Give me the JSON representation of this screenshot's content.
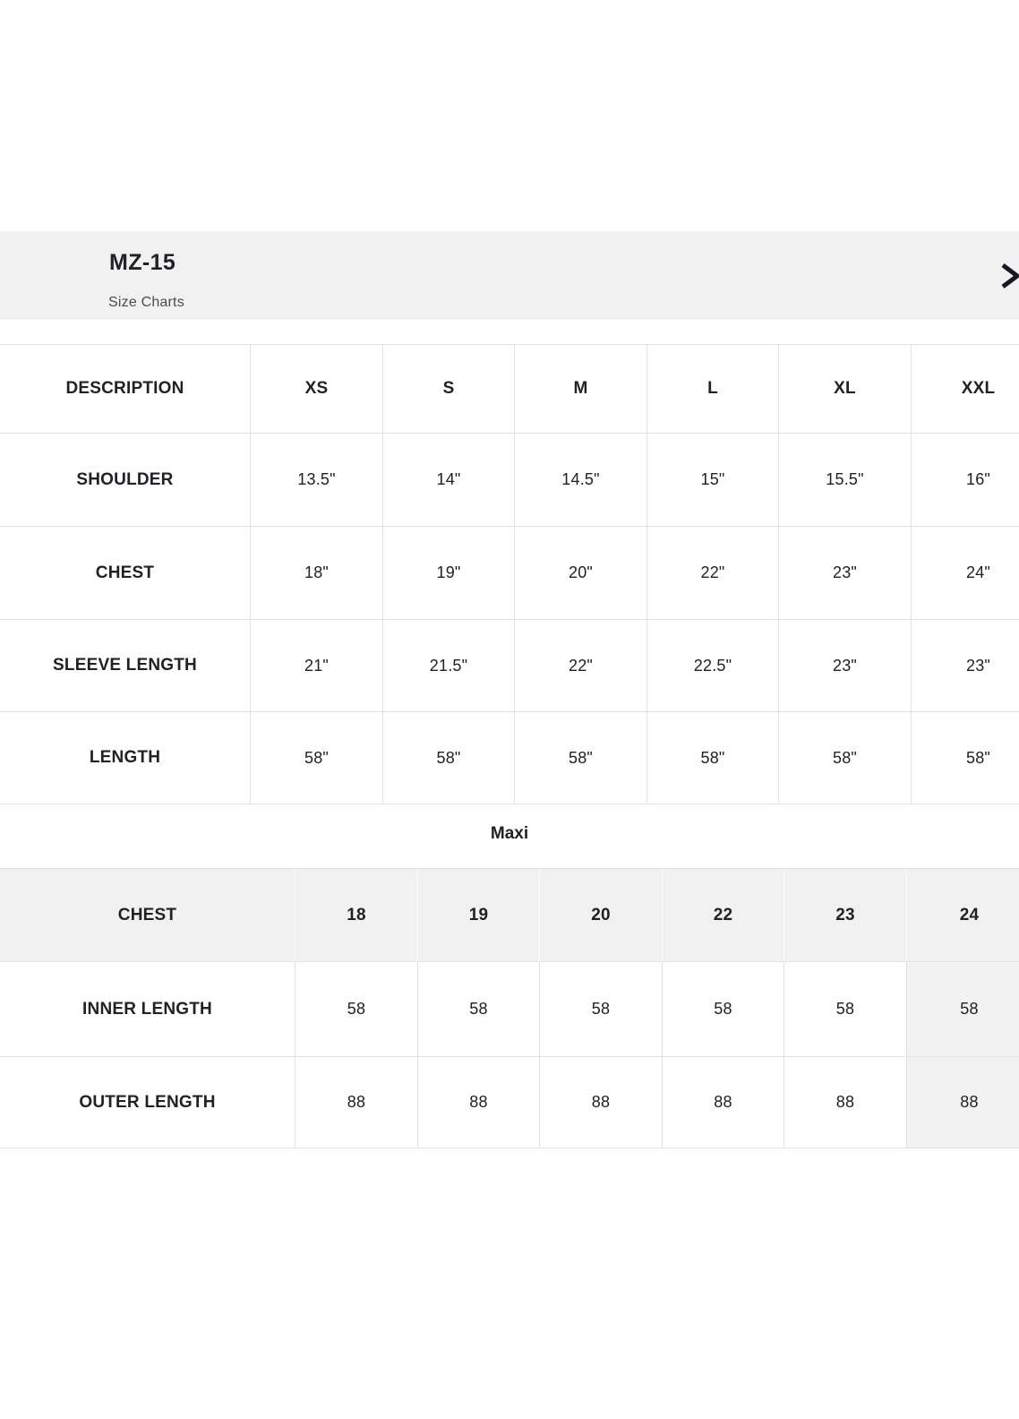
{
  "header": {
    "title": "MZ-15",
    "subtitle": "Size Charts",
    "chevron_icon": "chevron-right"
  },
  "size_table": {
    "columns": [
      "DESCRIPTION",
      "XS",
      "S",
      "M",
      "L",
      "XL",
      "XXL"
    ],
    "rows": [
      {
        "label": "SHOULDER",
        "values": [
          "13.5\"",
          "14\"",
          "14.5\"",
          "15\"",
          "15.5\"",
          "16\""
        ]
      },
      {
        "label": "CHEST",
        "values": [
          "18\"",
          "19\"",
          "20\"",
          "22\"",
          "23\"",
          "24\""
        ]
      },
      {
        "label": "SLEEVE LENGTH",
        "values": [
          "21\"",
          "21.5\"",
          "22\"",
          "22.5\"",
          "23\"",
          "23\""
        ]
      },
      {
        "label": "LENGTH",
        "values": [
          "58\"",
          "58\"",
          "58\"",
          "58\"",
          "58\"",
          "58\""
        ]
      }
    ]
  },
  "maxi": {
    "heading": "Maxi",
    "table": {
      "columns": [
        "CHEST",
        "18",
        "19",
        "20",
        "22",
        "23",
        "24"
      ],
      "rows": [
        {
          "label": "INNER LENGTH",
          "values": [
            "58",
            "58",
            "58",
            "58",
            "58",
            "58"
          ]
        },
        {
          "label": "OUTER LENGTH",
          "values": [
            "88",
            "88",
            "88",
            "88",
            "88",
            "88"
          ]
        }
      ]
    }
  },
  "colors": {
    "header_bg": "#f1f1f2",
    "table_border": "#e2e2e2",
    "gray_row_bg": "#f1f1f1",
    "shaded_col_bg": "#f2f2f3",
    "text": "#212126",
    "subtitle_text": "#4b4b50",
    "chevron": "#17171f"
  }
}
